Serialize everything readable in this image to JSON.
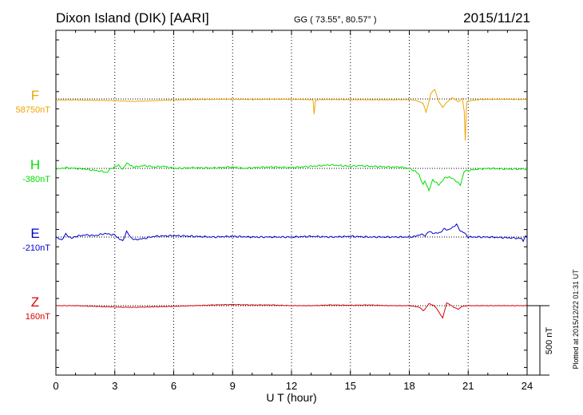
{
  "header": {
    "station": "Dixon Island (DIK)  [AARI]",
    "coords": "GG ( 73.55°,  80.57° )",
    "date": "2015/11/21"
  },
  "axis": {
    "xlabel": "U T (hour)",
    "xlim": [
      0,
      24
    ],
    "xticks": [
      0,
      3,
      6,
      9,
      12,
      15,
      18,
      21,
      24
    ],
    "xtick_labels": [
      "0",
      "3",
      "6",
      "9",
      "12",
      "15",
      "18",
      "21",
      "24"
    ]
  },
  "scale": {
    "label": "500 nT",
    "value_nT": 500
  },
  "plotted_note": "Plotted at 2015/12/22 01:31 UT",
  "colors": {
    "F": "#f0a500",
    "H": "#00e000",
    "E": "#0000cc",
    "Z": "#dd0000"
  },
  "chart_data": {
    "type": "line",
    "title": "Dixon Island (DIK)  [AARI]",
    "xlabel": "U T (hour)",
    "ylabel": "",
    "xlim": [
      0,
      24
    ],
    "y_unit": "nT",
    "grid": "vertical dotted every 3 h; dotted baseline per component",
    "series": [
      {
        "name": "F",
        "baseline_label": "58750nT",
        "baseline_nT": 58750,
        "points": [
          [
            0,
            -8
          ],
          [
            0.5,
            -7
          ],
          [
            1,
            -7
          ],
          [
            2,
            -10
          ],
          [
            3,
            -12
          ],
          [
            3.5,
            -15
          ],
          [
            4,
            -17
          ],
          [
            4.5,
            -15
          ],
          [
            5,
            -12
          ],
          [
            6,
            -7
          ],
          [
            7,
            -5
          ],
          [
            8,
            -3
          ],
          [
            9,
            -3
          ],
          [
            10,
            -4
          ],
          [
            11,
            -3
          ],
          [
            12,
            -3
          ],
          [
            13,
            -5
          ],
          [
            13.1,
            -8
          ],
          [
            13.15,
            -110
          ],
          [
            13.22,
            -8
          ],
          [
            13.4,
            -5
          ],
          [
            14,
            -4
          ],
          [
            15,
            -5
          ],
          [
            16,
            -6
          ],
          [
            17,
            -6
          ],
          [
            18,
            -5
          ],
          [
            18.3,
            -10
          ],
          [
            18.7,
            -30
          ],
          [
            18.85,
            -95
          ],
          [
            19,
            -20
          ],
          [
            19.1,
            40
          ],
          [
            19.3,
            70
          ],
          [
            19.5,
            -20
          ],
          [
            19.7,
            -60
          ],
          [
            19.9,
            -25
          ],
          [
            20.2,
            10
          ],
          [
            20.5,
            -20
          ],
          [
            20.7,
            5
          ],
          [
            20.8,
            -90
          ],
          [
            20.85,
            -300
          ],
          [
            20.92,
            -20
          ],
          [
            21.2,
            -10
          ],
          [
            21.5,
            -5
          ],
          [
            22,
            -3
          ],
          [
            23,
            -3
          ],
          [
            24,
            -4
          ]
        ]
      },
      {
        "name": "H",
        "baseline_label": "-380nT",
        "baseline_nT": -380,
        "points": [
          [
            0,
            -5
          ],
          [
            0.5,
            5
          ],
          [
            1,
            0
          ],
          [
            1.5,
            -5
          ],
          [
            2,
            -15
          ],
          [
            2.3,
            -20
          ],
          [
            2.6,
            -30
          ],
          [
            2.8,
            0
          ],
          [
            3,
            10
          ],
          [
            3.2,
            25
          ],
          [
            3.4,
            -10
          ],
          [
            3.6,
            40
          ],
          [
            3.8,
            20
          ],
          [
            4,
            10
          ],
          [
            4.5,
            20
          ],
          [
            5,
            10
          ],
          [
            5.5,
            15
          ],
          [
            6,
            0
          ],
          [
            7,
            5
          ],
          [
            8,
            3
          ],
          [
            9,
            10
          ],
          [
            9.5,
            0
          ],
          [
            10,
            5
          ],
          [
            11,
            10
          ],
          [
            12,
            5
          ],
          [
            12.5,
            10
          ],
          [
            13,
            15
          ],
          [
            13.5,
            20
          ],
          [
            14,
            25
          ],
          [
            15,
            15
          ],
          [
            15.5,
            20
          ],
          [
            16,
            15
          ],
          [
            17,
            10
          ],
          [
            17.5,
            10
          ],
          [
            18,
            0
          ],
          [
            18.3,
            -20
          ],
          [
            18.5,
            -45
          ],
          [
            18.7,
            -120
          ],
          [
            18.8,
            -90
          ],
          [
            19,
            -160
          ],
          [
            19.2,
            -80
          ],
          [
            19.5,
            -120
          ],
          [
            19.8,
            -70
          ],
          [
            20,
            -60
          ],
          [
            20.3,
            -80
          ],
          [
            20.6,
            -120
          ],
          [
            20.8,
            -20
          ],
          [
            21,
            -15
          ],
          [
            21.5,
            -5
          ],
          [
            22,
            0
          ],
          [
            23,
            -5
          ],
          [
            24,
            -5
          ]
        ]
      },
      {
        "name": "E",
        "baseline_label": "-210nT",
        "baseline_nT": -210,
        "points": [
          [
            0,
            -5
          ],
          [
            0.3,
            -20
          ],
          [
            0.5,
            20
          ],
          [
            0.8,
            -10
          ],
          [
            1,
            5
          ],
          [
            1.5,
            15
          ],
          [
            2,
            10
          ],
          [
            2.5,
            25
          ],
          [
            3,
            15
          ],
          [
            3.2,
            -10
          ],
          [
            3.4,
            -30
          ],
          [
            3.6,
            40
          ],
          [
            3.8,
            0
          ],
          [
            4,
            -20
          ],
          [
            4.5,
            -10
          ],
          [
            5,
            5
          ],
          [
            6,
            10
          ],
          [
            7,
            5
          ],
          [
            8,
            0
          ],
          [
            9,
            5
          ],
          [
            10,
            0
          ],
          [
            11,
            0
          ],
          [
            12,
            0
          ],
          [
            13,
            5
          ],
          [
            14,
            0
          ],
          [
            15,
            5
          ],
          [
            16,
            0
          ],
          [
            17,
            0
          ],
          [
            18,
            0
          ],
          [
            18.3,
            5
          ],
          [
            18.6,
            20
          ],
          [
            18.8,
            10
          ],
          [
            19,
            40
          ],
          [
            19.3,
            25
          ],
          [
            19.6,
            35
          ],
          [
            19.8,
            60
          ],
          [
            20,
            50
          ],
          [
            20.2,
            70
          ],
          [
            20.4,
            90
          ],
          [
            20.6,
            45
          ],
          [
            20.8,
            30
          ],
          [
            21,
            0
          ],
          [
            21.5,
            0
          ],
          [
            22,
            0
          ],
          [
            23,
            -5
          ],
          [
            23.7,
            -10
          ],
          [
            23.8,
            -30
          ],
          [
            23.9,
            10
          ],
          [
            24,
            -5
          ]
        ]
      },
      {
        "name": "Z",
        "baseline_label": "160nT",
        "baseline_nT": 160,
        "points": [
          [
            0,
            0
          ],
          [
            1,
            0
          ],
          [
            2,
            -5
          ],
          [
            3,
            -10
          ],
          [
            4,
            -12
          ],
          [
            5,
            -8
          ],
          [
            6,
            -5
          ],
          [
            7,
            0
          ],
          [
            8,
            5
          ],
          [
            9,
            8
          ],
          [
            10,
            5
          ],
          [
            11,
            5
          ],
          [
            12,
            0
          ],
          [
            13,
            0
          ],
          [
            14,
            5
          ],
          [
            15,
            3
          ],
          [
            16,
            5
          ],
          [
            17,
            0
          ],
          [
            18,
            0
          ],
          [
            18.5,
            -10
          ],
          [
            18.7,
            -35
          ],
          [
            18.8,
            -25
          ],
          [
            19,
            15
          ],
          [
            19.2,
            5
          ],
          [
            19.4,
            -20
          ],
          [
            19.5,
            -45
          ],
          [
            19.7,
            -90
          ],
          [
            19.9,
            20
          ],
          [
            20.1,
            5
          ],
          [
            20.3,
            -15
          ],
          [
            20.5,
            -25
          ],
          [
            20.7,
            -5
          ],
          [
            21,
            0
          ],
          [
            22,
            0
          ],
          [
            23,
            0
          ],
          [
            24,
            0
          ]
        ]
      }
    ]
  }
}
